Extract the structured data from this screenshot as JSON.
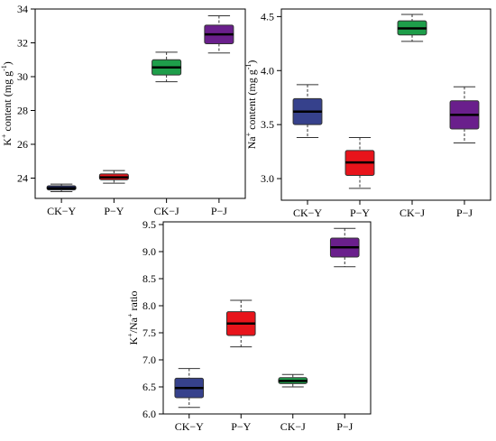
{
  "chart_data": [
    {
      "id": "k",
      "type": "box",
      "ylabel_main": "K",
      "ylabel_sup": "+",
      "ylabel_rest": " content (mg g",
      "ylabel_unit_sup": "-1",
      "ylabel_end": ")",
      "ylim": [
        22.8,
        34.0
      ],
      "yticks": [
        24,
        26,
        28,
        30,
        32,
        34
      ],
      "categories": [
        "CK−Y",
        "P−Y",
        "CK−J",
        "P−J"
      ],
      "colors": [
        "#1f2a6b",
        "#e8141b",
        "#1e9e4a",
        "#6a1f8c"
      ],
      "boxes": [
        {
          "min": 23.2,
          "q1": 23.3,
          "median": 23.4,
          "q3": 23.55,
          "max": 23.65
        },
        {
          "min": 23.7,
          "q1": 23.9,
          "median": 24.05,
          "q3": 24.25,
          "max": 24.45
        },
        {
          "min": 29.7,
          "q1": 30.1,
          "median": 30.55,
          "q3": 31.0,
          "max": 31.45
        },
        {
          "min": 31.4,
          "q1": 31.95,
          "median": 32.5,
          "q3": 33.05,
          "max": 33.6
        }
      ]
    },
    {
      "id": "na",
      "type": "box",
      "ylabel_main": "Na",
      "ylabel_sup": "+",
      "ylabel_rest": " content (mg g",
      "ylabel_unit_sup": "-1",
      "ylabel_end": ")",
      "ylim": [
        2.8,
        4.57
      ],
      "yticks": [
        3.0,
        3.5,
        4.0,
        4.5
      ],
      "ytick_labels": [
        "3.0",
        "3.5",
        "4.0",
        "4.5"
      ],
      "categories": [
        "CK−Y",
        "P−Y",
        "CK−J",
        "P−J"
      ],
      "colors": [
        "#36418c",
        "#e8141b",
        "#1e9e4a",
        "#6a1f8c"
      ],
      "boxes": [
        {
          "min": 3.38,
          "q1": 3.5,
          "median": 3.62,
          "q3": 3.74,
          "max": 3.87
        },
        {
          "min": 2.91,
          "q1": 3.03,
          "median": 3.15,
          "q3": 3.26,
          "max": 3.38
        },
        {
          "min": 4.27,
          "q1": 4.33,
          "median": 4.39,
          "q3": 4.46,
          "max": 4.52
        },
        {
          "min": 3.33,
          "q1": 3.46,
          "median": 3.59,
          "q3": 3.72,
          "max": 3.85
        }
      ]
    },
    {
      "id": "ratio",
      "type": "box",
      "ylabel_main": "K",
      "ylabel_sup": "+",
      "ylabel_rest": "/Na",
      "ylabel_unit_sup": "+",
      "ylabel_end": " ratio",
      "ylim": [
        6.0,
        9.55
      ],
      "yticks": [
        6.0,
        6.5,
        7.0,
        7.5,
        8.0,
        8.5,
        9.0,
        9.5
      ],
      "ytick_labels": [
        "6.0",
        "6.5",
        "7.0",
        "7.5",
        "8.0",
        "8.5",
        "9.0",
        "9.5"
      ],
      "categories": [
        "CK−Y",
        "P−Y",
        "CK−J",
        "P−J"
      ],
      "colors": [
        "#36418c",
        "#e8141b",
        "#1e9e4a",
        "#6a1f8c"
      ],
      "boxes": [
        {
          "min": 6.12,
          "q1": 6.3,
          "median": 6.48,
          "q3": 6.66,
          "max": 6.84
        },
        {
          "min": 7.24,
          "q1": 7.45,
          "median": 7.67,
          "q3": 7.89,
          "max": 8.1
        },
        {
          "min": 6.5,
          "q1": 6.56,
          "median": 6.61,
          "q3": 6.67,
          "max": 6.73
        },
        {
          "min": 8.72,
          "q1": 8.9,
          "median": 9.08,
          "q3": 9.25,
          "max": 9.43
        }
      ]
    }
  ]
}
